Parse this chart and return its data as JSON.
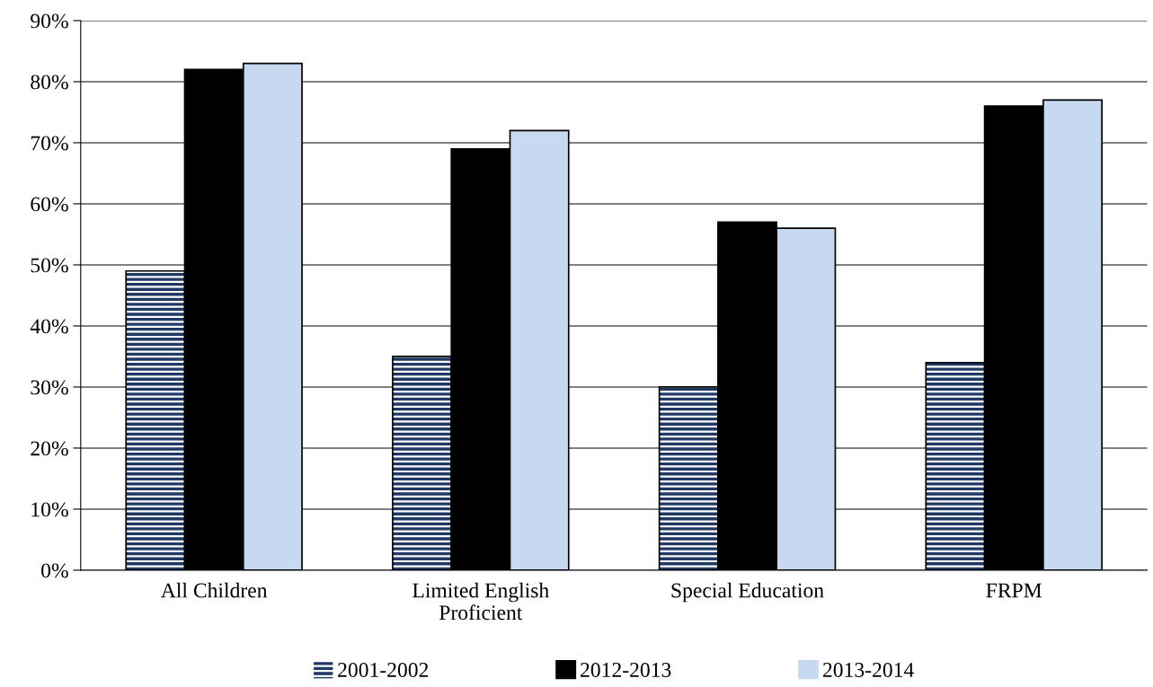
{
  "chart_data": {
    "type": "bar",
    "categories": [
      "All Children",
      "Limited English\nProficient",
      "Special Education",
      "FRPM"
    ],
    "series": [
      {
        "name": "2001-2002",
        "color": "#1f3864",
        "values": [
          49,
          35,
          30,
          34
        ]
      },
      {
        "name": "2012-2013",
        "color": "#000000",
        "values": [
          82,
          69,
          57,
          76
        ]
      },
      {
        "name": "2013-2014",
        "color": "#c6d9f0",
        "values": [
          83,
          72,
          56,
          77
        ]
      }
    ],
    "ylim": [
      0,
      90
    ],
    "yticks": [
      {
        "value": 0,
        "label": "0%"
      },
      {
        "value": 10,
        "label": "10%"
      },
      {
        "value": 20,
        "label": "20%"
      },
      {
        "value": 30,
        "label": "30%"
      },
      {
        "value": 40,
        "label": "40%"
      },
      {
        "value": 50,
        "label": "50%"
      },
      {
        "value": 60,
        "label": "60%"
      },
      {
        "value": 70,
        "label": "70%"
      },
      {
        "value": 80,
        "label": "80%"
      },
      {
        "value": 90,
        "label": "90%"
      }
    ],
    "grid": "y",
    "legend": "bottom"
  }
}
